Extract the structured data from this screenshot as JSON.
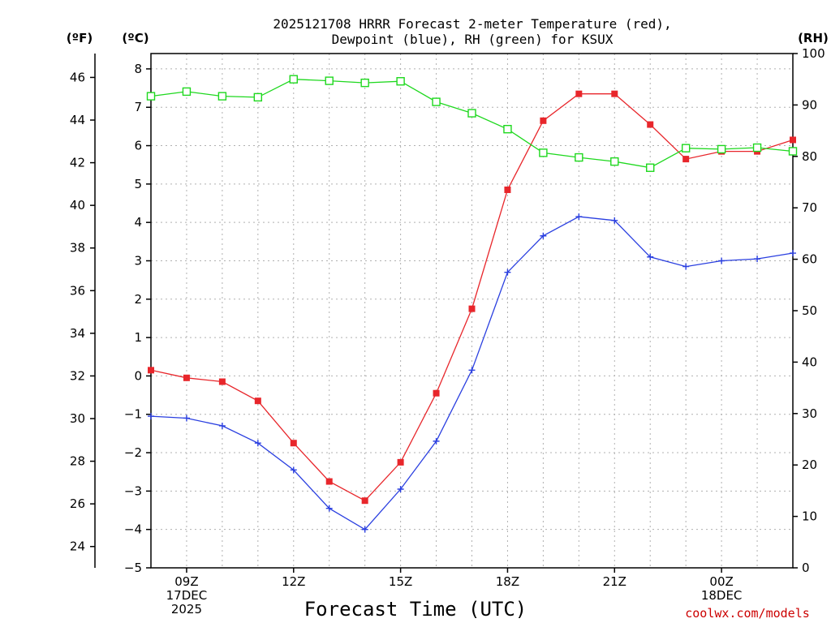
{
  "chart_data": {
    "type": "line",
    "title_line1": "2025121708 HRRR Forecast 2-meter Temperature (red),",
    "title_line2": "Dewpoint (blue), RH (green) for KSUX",
    "xlabel": "Forecast Time (UTC)",
    "credit": "coolwx.com/models",
    "units": {
      "fahrenheit": "(ºF)",
      "celsius": "(ºC)",
      "rh": "(RH)"
    },
    "x_hours": [
      8,
      9,
      10,
      11,
      12,
      13,
      14,
      15,
      16,
      17,
      18,
      19,
      20,
      21,
      22,
      23,
      24,
      25,
      26
    ],
    "xlim": [
      8,
      26
    ],
    "ylim_c": [
      -5,
      8.4
    ],
    "ylim_rh": [
      0,
      100
    ],
    "x_ticks": [
      {
        "hour": 9,
        "lines": [
          "09Z",
          "17DEC",
          "2025"
        ]
      },
      {
        "hour": 12,
        "lines": [
          "12Z"
        ]
      },
      {
        "hour": 15,
        "lines": [
          "15Z"
        ]
      },
      {
        "hour": 18,
        "lines": [
          "18Z"
        ]
      },
      {
        "hour": 21,
        "lines": [
          "21Z"
        ]
      },
      {
        "hour": 24,
        "lines": [
          "00Z",
          "18DEC"
        ]
      }
    ],
    "c_ticks": [
      -5,
      -4,
      -3,
      -2,
      -1,
      0,
      1,
      2,
      3,
      4,
      5,
      6,
      7,
      8
    ],
    "f_ticks": [
      24,
      26,
      28,
      30,
      32,
      34,
      36,
      38,
      40,
      42,
      44,
      46
    ],
    "rh_ticks": [
      0,
      10,
      20,
      30,
      40,
      50,
      60,
      70,
      80,
      90,
      100
    ],
    "series": [
      {
        "name": "Temperature",
        "unit": "C",
        "color": "#e8262b",
        "marker": "filled-square",
        "values": [
          0.15,
          -0.05,
          -0.15,
          -0.65,
          -1.75,
          -2.75,
          -3.25,
          -2.25,
          -0.45,
          1.75,
          4.85,
          6.65,
          7.35,
          7.35,
          6.55,
          5.65,
          5.85,
          5.85,
          6.15
        ]
      },
      {
        "name": "Dewpoint",
        "unit": "C",
        "color": "#2a3fe0",
        "marker": "plus",
        "values": [
          -1.05,
          -1.1,
          -1.3,
          -1.75,
          -2.45,
          -3.45,
          -4.0,
          -2.95,
          -1.7,
          0.15,
          2.7,
          3.65,
          4.15,
          4.05,
          3.1,
          2.85,
          3.0,
          3.05,
          3.2
        ]
      },
      {
        "name": "RH",
        "unit": "%",
        "color": "#1ed81e",
        "marker": "open-square",
        "values": [
          91.7,
          92.6,
          91.7,
          91.5,
          95.0,
          94.7,
          94.3,
          94.6,
          90.6,
          88.4,
          85.3,
          80.7,
          79.8,
          79.0,
          77.8,
          81.6,
          81.4,
          81.7,
          81.0
        ]
      }
    ]
  }
}
